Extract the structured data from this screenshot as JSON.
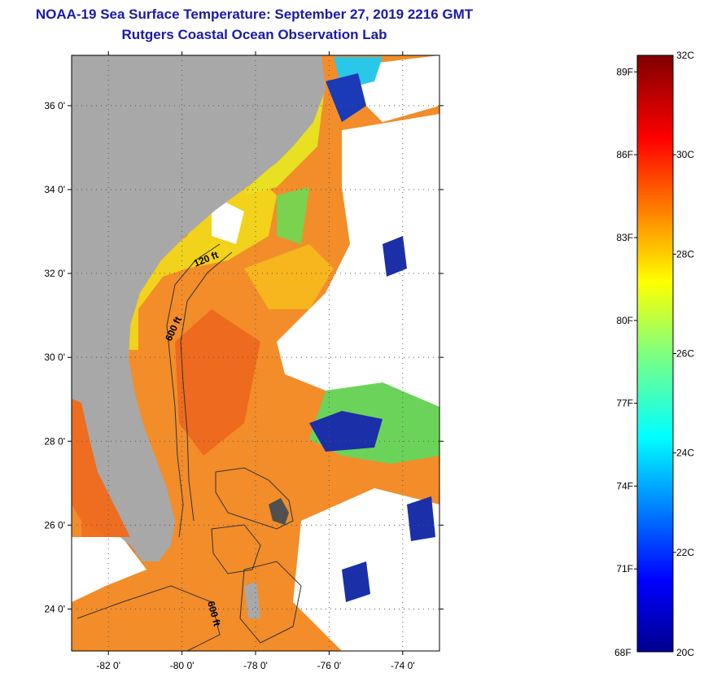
{
  "header": {
    "title": "NOAA-19 Sea Surface Temperature:  September 27, 2019 2216 GMT",
    "subtitle": "Rutgers Coastal Ocean Observation Lab"
  },
  "map": {
    "lat_ticks": [
      "36 0'",
      "34 0'",
      "32 0'",
      "30 0'",
      "28 0'",
      "26 0'",
      "24 0'"
    ],
    "lat_values": [
      36,
      34,
      32,
      30,
      28,
      26,
      24
    ],
    "lon_ticks": [
      "-82 0'",
      "-80 0'",
      "-78 0'",
      "-76 0'",
      "-74 0'"
    ],
    "lon_values": [
      -82,
      -80,
      -78,
      -76,
      -74
    ],
    "lat_range": [
      23,
      37.2
    ],
    "lon_range": [
      -83,
      -73
    ],
    "contour_labels": [
      "120 ft",
      "600 ft",
      "600 ft"
    ],
    "colors": {
      "land": "#a8a8a8",
      "cloud": "#ffffff",
      "warm": "#f08a24",
      "cool": "#1a2fa8"
    }
  },
  "colorbar": {
    "top_label": "32C",
    "bottom_label": "20C",
    "bottom_f": "68F",
    "celsius_ticks": [
      "30C",
      "28C",
      "26C",
      "24C",
      "22C"
    ],
    "celsius_values": [
      30,
      28,
      26,
      24,
      22
    ],
    "fahrenheit_ticks": [
      "89F",
      "86F",
      "83F",
      "80F",
      "77F",
      "74F",
      "71F"
    ],
    "fahrenheit_values": [
      89,
      86,
      83,
      80,
      77,
      74,
      71
    ],
    "range_c": [
      20,
      32
    ]
  }
}
